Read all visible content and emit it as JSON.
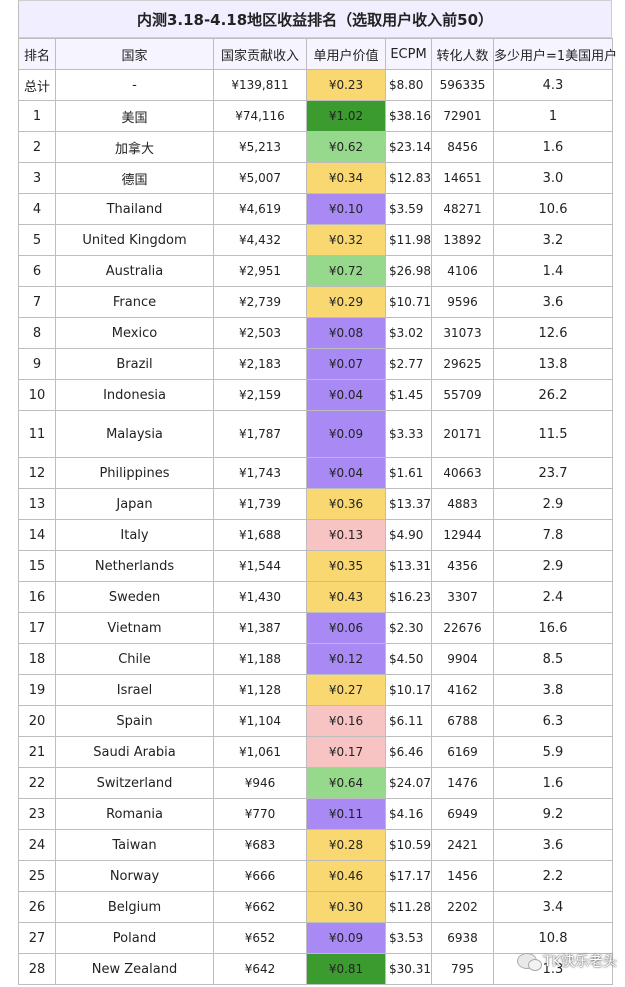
{
  "title": "内测3.18-4.18地区收益排名（选取用户收入前50）",
  "headers": [
    "排名",
    "国家",
    "国家贡献收入",
    "单用户价值",
    "ECPM",
    "转化人数",
    "多少用户=1美国用户"
  ],
  "colors": {
    "yellow": "#f9d871",
    "dark_green": "#3b9b2f",
    "light_green": "#97d98c",
    "purple": "#a98af5",
    "pink": "#f7c3c3"
  },
  "rows": [
    {
      "rank": "总计",
      "country": "-",
      "revenue": "¥139,811",
      "value": "¥0.23",
      "ecpm": "$8.80",
      "conversions": "596335",
      "ratio": "4.3",
      "color": "yellow"
    },
    {
      "rank": "1",
      "country": "美国",
      "revenue": "¥74,116",
      "value": "¥1.02",
      "ecpm": "$38.16",
      "conversions": "72901",
      "ratio": "1",
      "color": "dark_green"
    },
    {
      "rank": "2",
      "country": "加拿大",
      "revenue": "¥5,213",
      "value": "¥0.62",
      "ecpm": "$23.14",
      "conversions": "8456",
      "ratio": "1.6",
      "color": "light_green"
    },
    {
      "rank": "3",
      "country": "德国",
      "revenue": "¥5,007",
      "value": "¥0.34",
      "ecpm": "$12.83",
      "conversions": "14651",
      "ratio": "3.0",
      "color": "yellow"
    },
    {
      "rank": "4",
      "country": "Thailand",
      "revenue": "¥4,619",
      "value": "¥0.10",
      "ecpm": "$3.59",
      "conversions": "48271",
      "ratio": "10.6",
      "color": "purple"
    },
    {
      "rank": "5",
      "country": "United Kingdom",
      "revenue": "¥4,432",
      "value": "¥0.32",
      "ecpm": "$11.98",
      "conversions": "13892",
      "ratio": "3.2",
      "color": "yellow"
    },
    {
      "rank": "6",
      "country": "Australia",
      "revenue": "¥2,951",
      "value": "¥0.72",
      "ecpm": "$26.98",
      "conversions": "4106",
      "ratio": "1.4",
      "color": "light_green"
    },
    {
      "rank": "7",
      "country": "France",
      "revenue": "¥2,739",
      "value": "¥0.29",
      "ecpm": "$10.71",
      "conversions": "9596",
      "ratio": "3.6",
      "color": "yellow"
    },
    {
      "rank": "8",
      "country": "Mexico",
      "revenue": "¥2,503",
      "value": "¥0.08",
      "ecpm": "$3.02",
      "conversions": "31073",
      "ratio": "12.6",
      "color": "purple"
    },
    {
      "rank": "9",
      "country": "Brazil",
      "revenue": "¥2,183",
      "value": "¥0.07",
      "ecpm": "$2.77",
      "conversions": "29625",
      "ratio": "13.8",
      "color": "purple"
    },
    {
      "rank": "10",
      "country": "Indonesia",
      "revenue": "¥2,159",
      "value": "¥0.04",
      "ecpm": "$1.45",
      "conversions": "55709",
      "ratio": "26.2",
      "color": "purple"
    },
    {
      "rank": "11",
      "country": "Malaysia",
      "revenue": "¥1,787",
      "value": "¥0.09",
      "ecpm": "$3.33",
      "conversions": "20171",
      "ratio": "11.5",
      "color": "purple",
      "tall": true
    },
    {
      "rank": "12",
      "country": "Philippines",
      "revenue": "¥1,743",
      "value": "¥0.04",
      "ecpm": "$1.61",
      "conversions": "40663",
      "ratio": "23.7",
      "color": "purple"
    },
    {
      "rank": "13",
      "country": "Japan",
      "revenue": "¥1,739",
      "value": "¥0.36",
      "ecpm": "$13.37",
      "conversions": "4883",
      "ratio": "2.9",
      "color": "yellow"
    },
    {
      "rank": "14",
      "country": "Italy",
      "revenue": "¥1,688",
      "value": "¥0.13",
      "ecpm": "$4.90",
      "conversions": "12944",
      "ratio": "7.8",
      "color": "pink"
    },
    {
      "rank": "15",
      "country": "Netherlands",
      "revenue": "¥1,544",
      "value": "¥0.35",
      "ecpm": "$13.31",
      "conversions": "4356",
      "ratio": "2.9",
      "color": "yellow"
    },
    {
      "rank": "16",
      "country": "Sweden",
      "revenue": "¥1,430",
      "value": "¥0.43",
      "ecpm": "$16.23",
      "conversions": "3307",
      "ratio": "2.4",
      "color": "yellow"
    },
    {
      "rank": "17",
      "country": "Vietnam",
      "revenue": "¥1,387",
      "value": "¥0.06",
      "ecpm": "$2.30",
      "conversions": "22676",
      "ratio": "16.6",
      "color": "purple"
    },
    {
      "rank": "18",
      "country": "Chile",
      "revenue": "¥1,188",
      "value": "¥0.12",
      "ecpm": "$4.50",
      "conversions": "9904",
      "ratio": "8.5",
      "color": "purple"
    },
    {
      "rank": "19",
      "country": "Israel",
      "revenue": "¥1,128",
      "value": "¥0.27",
      "ecpm": "$10.17",
      "conversions": "4162",
      "ratio": "3.8",
      "color": "yellow"
    },
    {
      "rank": "20",
      "country": "Spain",
      "revenue": "¥1,104",
      "value": "¥0.16",
      "ecpm": "$6.11",
      "conversions": "6788",
      "ratio": "6.3",
      "color": "pink"
    },
    {
      "rank": "21",
      "country": "Saudi Arabia",
      "revenue": "¥1,061",
      "value": "¥0.17",
      "ecpm": "$6.46",
      "conversions": "6169",
      "ratio": "5.9",
      "color": "pink"
    },
    {
      "rank": "22",
      "country": "Switzerland",
      "revenue": "¥946",
      "value": "¥0.64",
      "ecpm": "$24.07",
      "conversions": "1476",
      "ratio": "1.6",
      "color": "light_green"
    },
    {
      "rank": "23",
      "country": "Romania",
      "revenue": "¥770",
      "value": "¥0.11",
      "ecpm": "$4.16",
      "conversions": "6949",
      "ratio": "9.2",
      "color": "purple"
    },
    {
      "rank": "24",
      "country": "Taiwan",
      "revenue": "¥683",
      "value": "¥0.28",
      "ecpm": "$10.59",
      "conversions": "2421",
      "ratio": "3.6",
      "color": "yellow"
    },
    {
      "rank": "25",
      "country": "Norway",
      "revenue": "¥666",
      "value": "¥0.46",
      "ecpm": "$17.17",
      "conversions": "1456",
      "ratio": "2.2",
      "color": "yellow"
    },
    {
      "rank": "26",
      "country": "Belgium",
      "revenue": "¥662",
      "value": "¥0.30",
      "ecpm": "$11.28",
      "conversions": "2202",
      "ratio": "3.4",
      "color": "yellow"
    },
    {
      "rank": "27",
      "country": "Poland",
      "revenue": "¥652",
      "value": "¥0.09",
      "ecpm": "$3.53",
      "conversions": "6938",
      "ratio": "10.8",
      "color": "purple"
    },
    {
      "rank": "28",
      "country": "New Zealand",
      "revenue": "¥642",
      "value": "¥0.81",
      "ecpm": "$30.31",
      "conversions": "795",
      "ratio": "1.3",
      "color": "dark_green"
    }
  ],
  "watermark": "TK快乐老头"
}
